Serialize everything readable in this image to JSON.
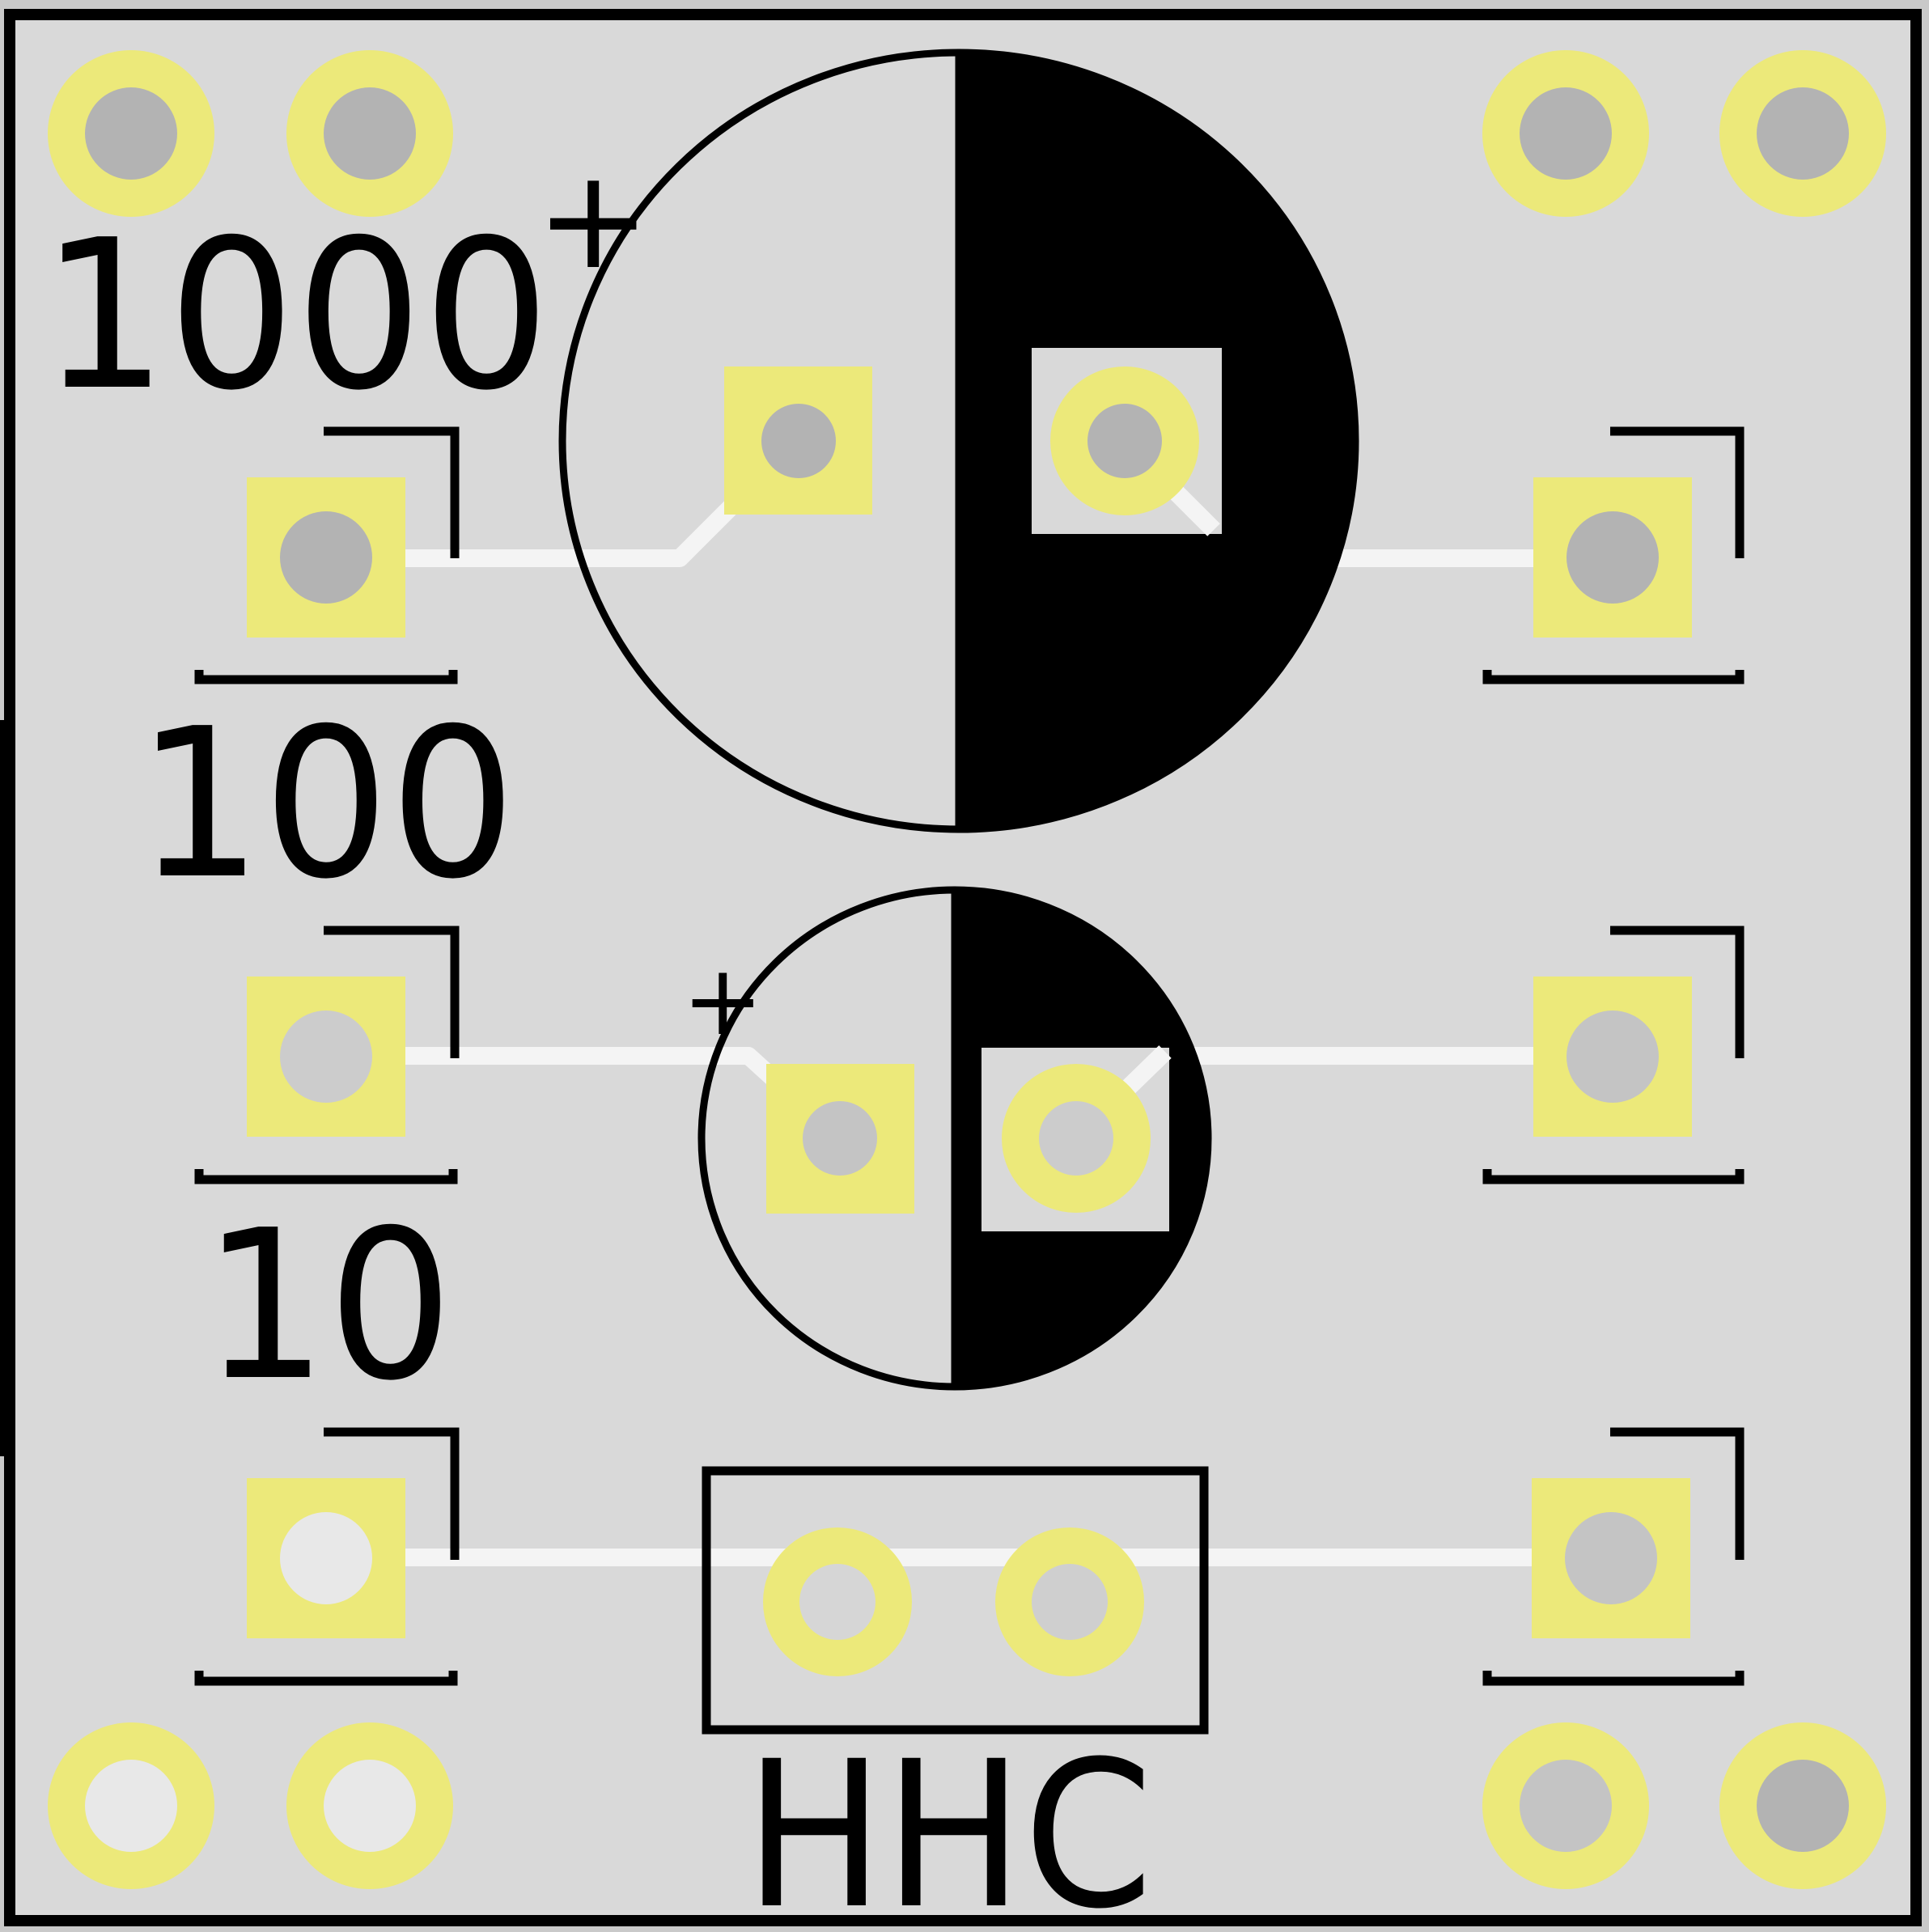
{
  "labels": {
    "cap_large_value": "1000",
    "cap_medium_value": "100",
    "cap_small_value": "10",
    "connector_label": "HHC",
    "cap_large_polarity": "+",
    "cap_medium_polarity": "+"
  },
  "colors": {
    "board": "#d9d9d9",
    "board_outline": "#000000",
    "copper_pad": "#ece97a",
    "drill_hole": "#b3b3b3",
    "drill_hole_light": "#e8e8e8",
    "trace": "#f4f4f4",
    "silkscreen": "#000000"
  }
}
